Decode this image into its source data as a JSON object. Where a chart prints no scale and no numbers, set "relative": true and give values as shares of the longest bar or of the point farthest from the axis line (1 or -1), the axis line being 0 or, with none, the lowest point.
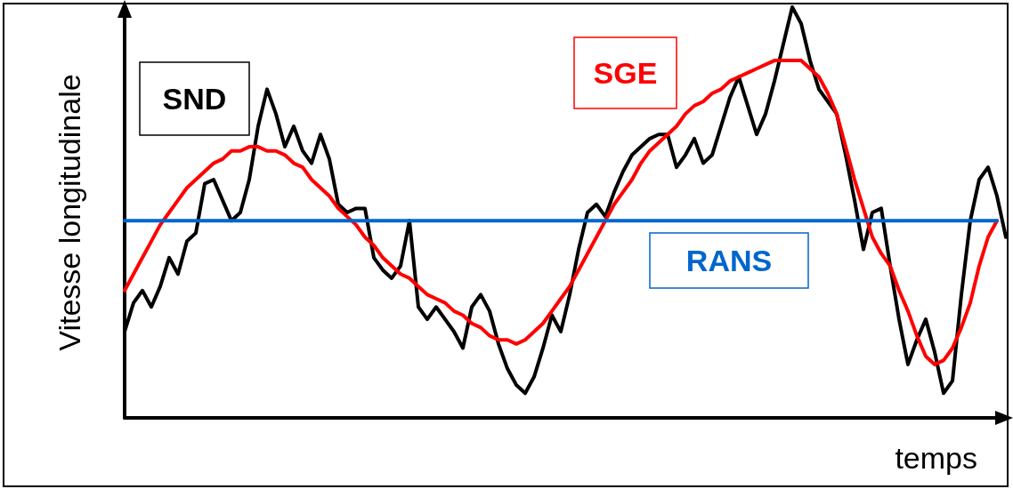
{
  "chart_data": {
    "type": "line",
    "relative": true,
    "xlabel": "temps",
    "ylabel": "Vitesse longitudinale",
    "legend": false,
    "grid": false,
    "marker": "none",
    "line_style": "solid",
    "categories": [
      null,
      null,
      null,
      null,
      null,
      null,
      null,
      null,
      null,
      null,
      null,
      null,
      null,
      null,
      null,
      null,
      null,
      null,
      null,
      null,
      null,
      null,
      null,
      null,
      null,
      null,
      null,
      null,
      null,
      null,
      null,
      null,
      null,
      null,
      null,
      null,
      null,
      null,
      null,
      null,
      null,
      null,
      null,
      null,
      null,
      null,
      null,
      null,
      null,
      null,
      null,
      null,
      null,
      null,
      null,
      null,
      null,
      null,
      null,
      null,
      null,
      null,
      null,
      null,
      null,
      null,
      null,
      null,
      null,
      null,
      null,
      null,
      null,
      null,
      null,
      null,
      null,
      null,
      null,
      null,
      null,
      null,
      null,
      null,
      null,
      null,
      null,
      null,
      null,
      null,
      null,
      null,
      null,
      null,
      null,
      null,
      null,
      null,
      null,
      null
    ],
    "series": [
      {
        "name": "SND",
        "color": "#000000",
        "values": [
          0.21,
          0.28,
          0.31,
          0.27,
          0.32,
          0.39,
          0.35,
          0.43,
          0.45,
          0.57,
          0.58,
          0.53,
          0.48,
          0.5,
          0.58,
          0.71,
          0.8,
          0.74,
          0.66,
          0.71,
          0.65,
          0.62,
          0.69,
          0.63,
          0.52,
          0.5,
          0.51,
          0.51,
          0.39,
          0.36,
          0.34,
          0.37,
          0.48,
          0.27,
          0.24,
          0.27,
          0.24,
          0.21,
          0.17,
          0.27,
          0.3,
          0.26,
          0.18,
          0.12,
          0.08,
          0.06,
          0.1,
          0.17,
          0.25,
          0.21,
          0.3,
          0.41,
          0.5,
          0.52,
          0.49,
          0.55,
          0.6,
          0.64,
          0.66,
          0.68,
          0.69,
          0.69,
          0.61,
          0.64,
          0.68,
          0.62,
          0.64,
          0.71,
          0.78,
          0.83,
          0.76,
          0.69,
          0.74,
          0.82,
          0.91,
          1.0,
          0.96,
          0.87,
          0.8,
          0.77,
          0.74,
          0.64,
          0.53,
          0.41,
          0.5,
          0.51,
          0.37,
          0.24,
          0.13,
          0.19,
          0.24,
          0.16,
          0.06,
          0.09,
          0.3,
          0.48,
          0.58,
          0.61,
          0.54,
          0.44
        ]
      },
      {
        "name": "SGE",
        "color": "#ff0000",
        "values": [
          0.31,
          0.35,
          0.39,
          0.43,
          0.47,
          0.5,
          0.53,
          0.56,
          0.58,
          0.6,
          0.62,
          0.63,
          0.65,
          0.65,
          0.66,
          0.66,
          0.65,
          0.65,
          0.64,
          0.62,
          0.61,
          0.58,
          0.56,
          0.54,
          0.51,
          0.49,
          0.47,
          0.44,
          0.42,
          0.39,
          0.37,
          0.35,
          0.34,
          0.32,
          0.3,
          0.29,
          0.28,
          0.26,
          0.25,
          0.23,
          0.22,
          0.2,
          0.19,
          0.19,
          0.18,
          0.19,
          0.21,
          0.23,
          0.26,
          0.29,
          0.32,
          0.36,
          0.4,
          0.44,
          0.48,
          0.52,
          0.55,
          0.58,
          0.62,
          0.65,
          0.67,
          0.69,
          0.71,
          0.74,
          0.76,
          0.77,
          0.79,
          0.8,
          0.82,
          0.83,
          0.84,
          0.85,
          0.86,
          0.87,
          0.87,
          0.87,
          0.87,
          0.85,
          0.83,
          0.79,
          0.74,
          0.66,
          0.58,
          0.51,
          0.44,
          0.4,
          0.37,
          0.31,
          0.26,
          0.2,
          0.15,
          0.13,
          0.14,
          0.17,
          0.22,
          0.28,
          0.37,
          0.44,
          0.48,
          null
        ]
      },
      {
        "name": "RANS",
        "color": "#0066cc",
        "values": [
          0.48,
          0.48,
          0.48,
          0.48,
          0.48,
          0.48,
          0.48,
          0.48,
          0.48,
          0.48,
          0.48,
          0.48,
          0.48,
          0.48,
          0.48,
          0.48,
          0.48,
          0.48,
          0.48,
          0.48,
          0.48,
          0.48,
          0.48,
          0.48,
          0.48,
          0.48,
          0.48,
          0.48,
          0.48,
          0.48,
          0.48,
          0.48,
          0.48,
          0.48,
          0.48,
          0.48,
          0.48,
          0.48,
          0.48,
          0.48,
          0.48,
          0.48,
          0.48,
          0.48,
          0.48,
          0.48,
          0.48,
          0.48,
          0.48,
          0.48,
          0.48,
          0.48,
          0.48,
          0.48,
          0.48,
          0.48,
          0.48,
          0.48,
          0.48,
          0.48,
          0.48,
          0.48,
          0.48,
          0.48,
          0.48,
          0.48,
          0.48,
          0.48,
          0.48,
          0.48,
          0.48,
          0.48,
          0.48,
          0.48,
          0.48,
          0.48,
          0.48,
          0.48,
          0.48,
          0.48,
          0.48,
          0.48,
          0.48,
          0.48,
          0.48,
          0.48,
          0.48,
          0.48,
          0.48,
          0.48,
          0.48,
          0.48,
          0.48,
          0.48,
          0.48,
          0.48,
          0.48,
          0.48,
          0.48,
          null
        ]
      }
    ]
  }
}
